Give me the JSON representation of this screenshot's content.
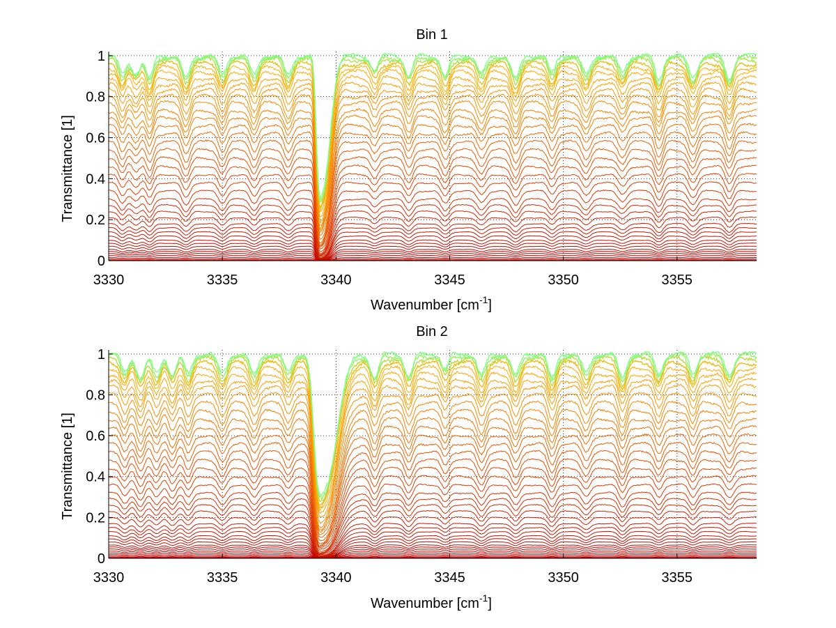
{
  "chart_data": [
    {
      "type": "line",
      "title": "Bin 1",
      "xlabel_main": "Wavenumber [cm",
      "xlabel_sup": "-1",
      "xlabel_tail": "]",
      "ylabel": "Transmittance [1]",
      "xlim": [
        3330,
        3358.5
      ],
      "ylim": [
        0,
        1.02
      ],
      "xticks": [
        3330,
        3335,
        3340,
        3345,
        3350,
        3355
      ],
      "yticks": [
        0,
        0.2,
        0.4,
        0.6,
        0.8,
        1
      ],
      "xtick_labels": [
        "3330",
        "3335",
        "3340",
        "3345",
        "3350",
        "3355"
      ],
      "ytick_labels": [
        "0",
        "0.2",
        "0.4",
        "0.6",
        "0.8",
        "1"
      ],
      "grid": "dotted",
      "num_series": 40,
      "baseline_levels": [
        1.0,
        0.99,
        0.98,
        0.96,
        0.94,
        0.92,
        0.89,
        0.86,
        0.83,
        0.8,
        0.77,
        0.73,
        0.7,
        0.66,
        0.62,
        0.58,
        0.54,
        0.5,
        0.46,
        0.42,
        0.38,
        0.34,
        0.3,
        0.27,
        0.24,
        0.21,
        0.18,
        0.16,
        0.14,
        0.12,
        0.1,
        0.085,
        0.07,
        0.055,
        0.045,
        0.035,
        0.025,
        0.015,
        0.008,
        0.003
      ],
      "strong_lines": [
        {
          "x": 3339.3,
          "depth": 1.0,
          "width": 0.18
        }
      ],
      "absorption_lines": [
        3330.6,
        3331.2,
        3331.8,
        3333.4,
        3335.0,
        3336.4,
        3337.9,
        3341.7,
        3343.2,
        3344.8,
        3346.4,
        3347.9,
        3349.5,
        3351.0,
        3352.6,
        3354.2,
        3355.7,
        3357.3
      ],
      "colors": {
        "top": "#7fff80",
        "mid": "#ffb000",
        "low": "#e85000",
        "bottom": "#c00000"
      }
    },
    {
      "type": "line",
      "title": "Bin 2",
      "xlabel_main": "Wavenumber [cm",
      "xlabel_sup": "-1",
      "xlabel_tail": "]",
      "ylabel": "Transmittance [1]",
      "xlim": [
        3330,
        3358.5
      ],
      "ylim": [
        0,
        1.02
      ],
      "xticks": [
        3330,
        3335,
        3340,
        3345,
        3350,
        3355
      ],
      "yticks": [
        0,
        0.2,
        0.4,
        0.6,
        0.8,
        1
      ],
      "xtick_labels": [
        "3330",
        "3335",
        "3340",
        "3345",
        "3350",
        "3355"
      ],
      "ytick_labels": [
        "0",
        "0.2",
        "0.4",
        "0.6",
        "0.8",
        "1"
      ],
      "grid": "dotted",
      "num_series": 40,
      "baseline_levels": [
        1.0,
        0.99,
        0.975,
        0.955,
        0.93,
        0.9,
        0.87,
        0.84,
        0.8,
        0.76,
        0.72,
        0.68,
        0.64,
        0.6,
        0.56,
        0.52,
        0.48,
        0.44,
        0.4,
        0.36,
        0.32,
        0.29,
        0.26,
        0.23,
        0.2,
        0.17,
        0.15,
        0.13,
        0.11,
        0.095,
        0.08,
        0.065,
        0.055,
        0.045,
        0.035,
        0.026,
        0.018,
        0.011,
        0.006,
        0.002
      ],
      "strong_lines": [
        {
          "x": 3339.3,
          "depth": 1.0,
          "width": 0.3
        }
      ],
      "absorption_lines": [
        3330.7,
        3331.4,
        3332.1,
        3332.8,
        3333.5,
        3335.0,
        3336.4,
        3337.9,
        3341.7,
        3343.2,
        3344.8,
        3346.4,
        3347.9,
        3349.5,
        3351.0,
        3352.6,
        3354.2,
        3355.7,
        3357.3
      ],
      "colors": {
        "top": "#7fff80",
        "mid": "#ffb000",
        "low": "#e85000",
        "bottom": "#c00000"
      }
    }
  ]
}
